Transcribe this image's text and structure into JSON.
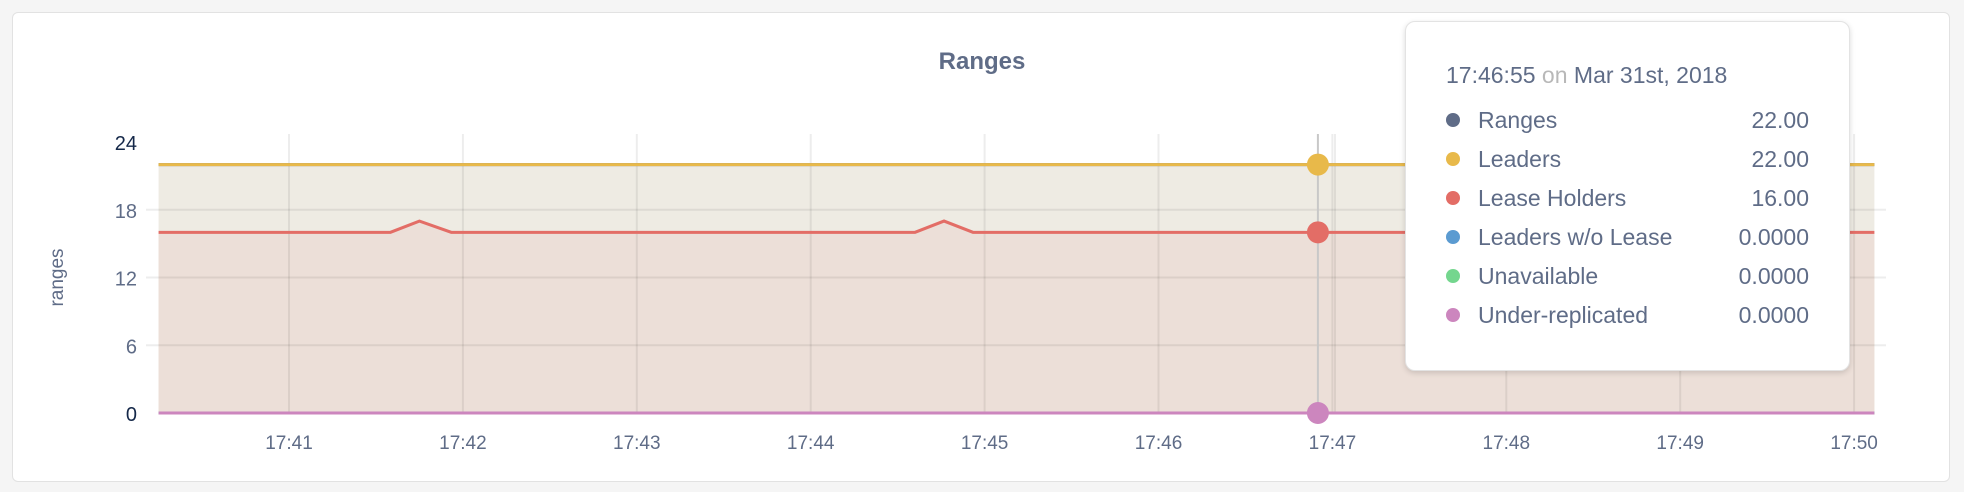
{
  "chart_data": {
    "type": "area",
    "title": "Ranges",
    "ylabel": "ranges",
    "xlabel": "",
    "ylim": [
      0,
      24
    ],
    "yticks": [
      "0",
      "6",
      "12",
      "18",
      "24"
    ],
    "xticks": [
      "17:41",
      "17:42",
      "17:43",
      "17:44",
      "17:45",
      "17:46",
      "17:47",
      "17:48",
      "17:49",
      "17:50"
    ],
    "xlim": [
      "17:40:15",
      "17:50:07"
    ],
    "grid": true,
    "series": [
      {
        "name": "Ranges",
        "color": "#5f6c87",
        "points": [
          [
            "17:40:15",
            22
          ],
          [
            "17:50:07",
            22
          ]
        ]
      },
      {
        "name": "Leaders",
        "color": "#e8b94a",
        "points": [
          [
            "17:40:15",
            22
          ],
          [
            "17:50:07",
            22
          ]
        ]
      },
      {
        "name": "Lease Holders",
        "color": "#e36d66",
        "points": [
          [
            "17:40:15",
            16
          ],
          [
            "17:41:35",
            16
          ],
          [
            "17:41:45",
            17
          ],
          [
            "17:41:56",
            16
          ],
          [
            "17:44:36",
            16
          ],
          [
            "17:44:46",
            17
          ],
          [
            "17:44:56",
            16
          ],
          [
            "17:50:07",
            16
          ]
        ]
      },
      {
        "name": "Leaders w/o Lease",
        "color": "#5b9bd1",
        "points": [
          [
            "17:40:15",
            0
          ],
          [
            "17:50:07",
            0
          ]
        ]
      },
      {
        "name": "Unavailable",
        "color": "#74d68e",
        "points": [
          [
            "17:40:15",
            0
          ],
          [
            "17:50:07",
            0
          ]
        ]
      },
      {
        "name": "Under-replicated",
        "color": "#cc86be",
        "points": [
          [
            "17:40:15",
            0
          ],
          [
            "17:50:07",
            0
          ]
        ]
      }
    ]
  },
  "tooltip": {
    "time": "17:46:55",
    "on": "on",
    "date": "Mar 31st, 2018",
    "rows": [
      {
        "label": "Ranges",
        "value": "22.00",
        "color": "#5f6c87"
      },
      {
        "label": "Leaders",
        "value": "22.00",
        "color": "#e8b94a"
      },
      {
        "label": "Lease Holders",
        "value": "16.00",
        "color": "#e36d66"
      },
      {
        "label": "Leaders w/o Lease",
        "value": "0.0000",
        "color": "#5b9bd1"
      },
      {
        "label": "Unavailable",
        "value": "0.0000",
        "color": "#74d68e"
      },
      {
        "label": "Under-replicated",
        "value": "0.0000",
        "color": "#cc86be"
      }
    ]
  }
}
